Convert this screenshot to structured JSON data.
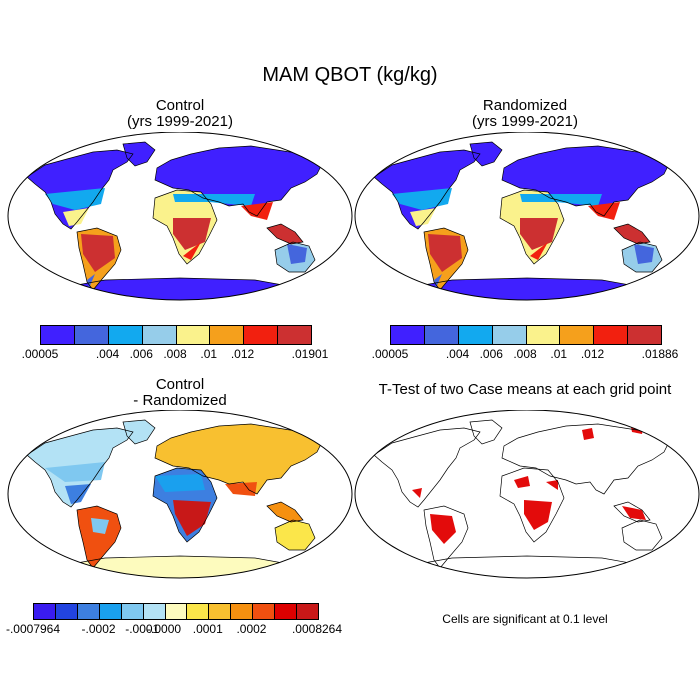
{
  "figure": {
    "title": "MAM QBOT (kg/kg)"
  },
  "panels": [
    {
      "title_line1": "Control",
      "title_line2": "(yrs 1999-2021)"
    },
    {
      "title_line1": "Randomized",
      "title_line2": "(yrs 1999-2021)"
    },
    {
      "title_line1": "Control",
      "title_line2": "- Randomized"
    },
    {
      "title_line1": "T-Test of two Case means at each grid point",
      "title_line2": ""
    }
  ],
  "colorbars": [
    {
      "colors": [
        "#4020ff",
        "#4466dd",
        "#12a9ef",
        "#96cdea",
        "#faf28c",
        "#f5a01c",
        "#f2200f",
        "#cc3031"
      ],
      "labels": [
        ".00005",
        ".004",
        ".006",
        ".008",
        ".01",
        ".012",
        ".01901"
      ]
    },
    {
      "colors": [
        "#4020ff",
        "#4466dd",
        "#12a9ef",
        "#96cdea",
        "#faf28c",
        "#f5a01c",
        "#f2200f",
        "#cc3031"
      ],
      "labels": [
        ".00005",
        ".004",
        ".006",
        ".008",
        ".01",
        ".012",
        ".01886"
      ]
    },
    {
      "colors": [
        "#3a1cf0",
        "#2244e0",
        "#3d7fe0",
        "#1aa0ee",
        "#7fc8f0",
        "#b3e2f5",
        "#fdfbbe",
        "#fbe64a",
        "#f8c030",
        "#f59010",
        "#f05010",
        "#dd0000",
        "#c81818"
      ],
      "labels": [
        "-.0007964",
        "-.0002",
        "-.0001",
        "-.0000",
        ".0001",
        ".0002",
        ".0008264"
      ]
    }
  ],
  "ttest_note": "Cells are significant at 0.1 level",
  "colors": {
    "ocean": "#ffffff",
    "significant": "#e30b0b"
  }
}
